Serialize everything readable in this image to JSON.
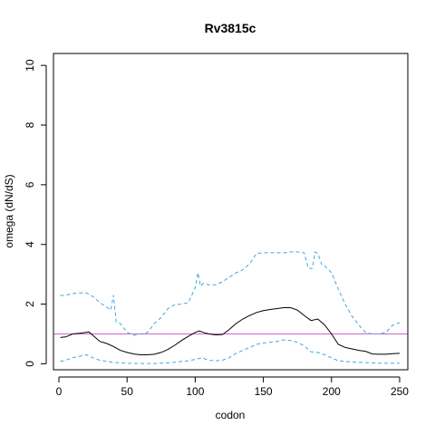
{
  "chart_data": {
    "type": "line",
    "title": "Rv3815c",
    "xlabel": "codon",
    "ylabel": "omega (dN/dS)",
    "xlim": [
      -4,
      256
    ],
    "ylim": [
      -0.2,
      10.4
    ],
    "xticks": [
      0,
      50,
      100,
      150,
      200,
      250
    ],
    "yticks": [
      0,
      2,
      4,
      6,
      8,
      10
    ],
    "grid": false,
    "reference_line": {
      "y": 1.0,
      "color": "#cc66cc"
    },
    "series": [
      {
        "role": "estimate",
        "color": "#000000",
        "dash": "solid",
        "x": [
          1,
          5,
          10,
          15,
          20,
          22,
          25,
          30,
          35,
          40,
          45,
          50,
          55,
          60,
          65,
          70,
          75,
          80,
          85,
          90,
          95,
          100,
          103,
          106,
          110,
          115,
          120,
          125,
          130,
          135,
          140,
          145,
          150,
          155,
          160,
          165,
          170,
          175,
          180,
          185,
          190,
          195,
          200,
          205,
          210,
          215,
          220,
          225,
          230,
          235,
          240,
          245,
          250
        ],
        "y": [
          0.88,
          0.9,
          1.0,
          1.02,
          1.05,
          1.07,
          0.95,
          0.75,
          0.68,
          0.58,
          0.45,
          0.38,
          0.33,
          0.3,
          0.3,
          0.32,
          0.38,
          0.48,
          0.62,
          0.78,
          0.92,
          1.05,
          1.1,
          1.05,
          1.0,
          0.97,
          0.98,
          1.15,
          1.35,
          1.5,
          1.62,
          1.72,
          1.78,
          1.82,
          1.85,
          1.88,
          1.88,
          1.8,
          1.62,
          1.45,
          1.5,
          1.3,
          1.0,
          0.65,
          0.55,
          0.5,
          0.45,
          0.42,
          0.33,
          0.32,
          0.32,
          0.34,
          0.35
        ]
      },
      {
        "role": "upper",
        "color": "#3fa9e0",
        "dash": "dashed",
        "x": [
          1,
          5,
          10,
          15,
          20,
          25,
          30,
          35,
          38,
          40,
          42,
          45,
          50,
          55,
          60,
          65,
          70,
          75,
          80,
          85,
          90,
          95,
          100,
          102,
          104,
          106,
          110,
          115,
          120,
          125,
          130,
          135,
          140,
          145,
          150,
          155,
          160,
          165,
          170,
          175,
          180,
          183,
          186,
          188,
          190,
          193,
          195,
          200,
          205,
          210,
          215,
          220,
          225,
          230,
          235,
          240,
          245,
          250
        ],
        "y": [
          2.28,
          2.3,
          2.35,
          2.38,
          2.38,
          2.25,
          2.05,
          1.9,
          1.8,
          2.3,
          1.4,
          1.35,
          1.05,
          0.95,
          1.0,
          1.05,
          1.35,
          1.55,
          1.85,
          1.98,
          2.0,
          2.05,
          2.55,
          3.05,
          2.6,
          2.7,
          2.65,
          2.65,
          2.75,
          2.9,
          3.05,
          3.15,
          3.35,
          3.7,
          3.72,
          3.72,
          3.72,
          3.72,
          3.75,
          3.75,
          3.72,
          3.2,
          3.2,
          3.75,
          3.7,
          3.3,
          3.28,
          3.05,
          2.5,
          2.0,
          1.6,
          1.3,
          1.05,
          1.0,
          1.0,
          1.05,
          1.3,
          1.38
        ]
      },
      {
        "role": "lower",
        "color": "#3fa9e0",
        "dash": "dashed",
        "x": [
          1,
          5,
          10,
          15,
          20,
          25,
          30,
          35,
          40,
          45,
          50,
          55,
          60,
          65,
          70,
          75,
          80,
          85,
          90,
          95,
          100,
          105,
          110,
          115,
          120,
          125,
          130,
          135,
          140,
          145,
          150,
          155,
          160,
          165,
          170,
          175,
          180,
          185,
          190,
          195,
          200,
          205,
          210,
          215,
          220,
          225,
          230,
          235,
          240,
          245,
          250
        ],
        "y": [
          0.08,
          0.12,
          0.2,
          0.25,
          0.3,
          0.2,
          0.12,
          0.08,
          0.05,
          0.03,
          0.02,
          0.01,
          0.01,
          0.01,
          0.01,
          0.02,
          0.03,
          0.05,
          0.08,
          0.1,
          0.15,
          0.2,
          0.12,
          0.1,
          0.12,
          0.2,
          0.35,
          0.45,
          0.55,
          0.65,
          0.7,
          0.72,
          0.75,
          0.8,
          0.78,
          0.72,
          0.6,
          0.4,
          0.38,
          0.3,
          0.2,
          0.1,
          0.08,
          0.06,
          0.05,
          0.04,
          0.03,
          0.02,
          0.02,
          0.02,
          0.02
        ]
      }
    ]
  }
}
